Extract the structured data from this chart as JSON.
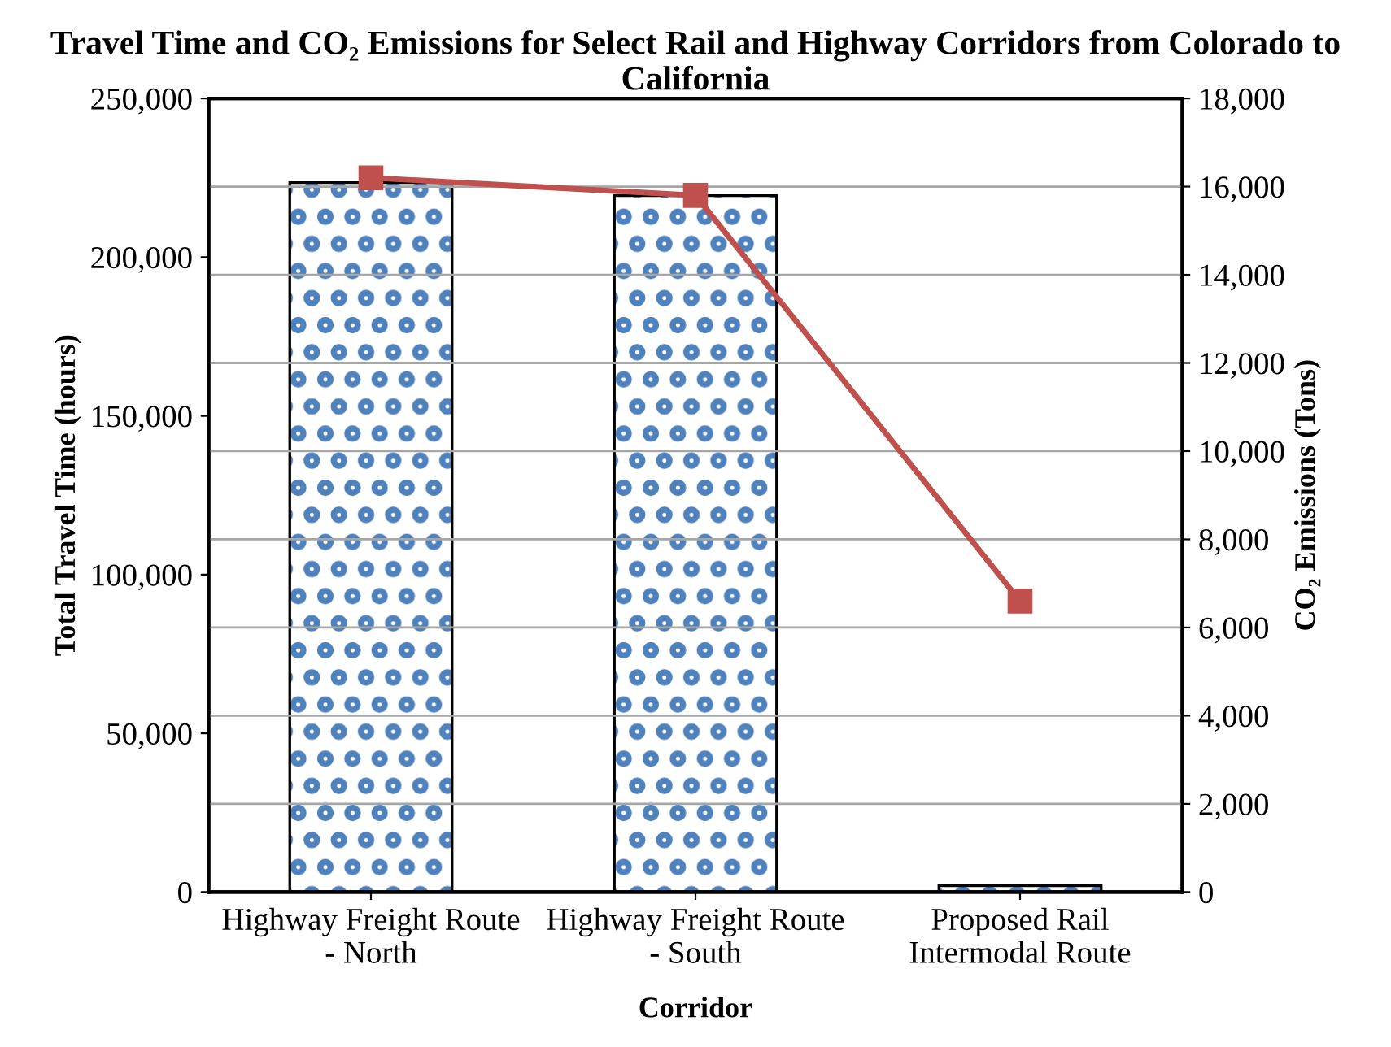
{
  "chart_data": {
    "type": "bar",
    "title": "Travel Time and CO₂ Emissions for Select Rail and Highway Corridors from Colorado to California",
    "xlabel": "Corridor",
    "ylabel": "Total Travel Time (hours)",
    "y2label": "CO₂ Emissions (Tons)",
    "categories": [
      "Highway Freight Route - North",
      "Highway Freight Route - South",
      "Proposed Rail Intermodal Route"
    ],
    "series": [
      {
        "color": "#4f81bd",
        "values": [
          223500,
          219400,
          2000
        ]
      },
      {
        "type": "line",
        "axis": "y2",
        "color": "#c0504d",
        "values": [
          16200,
          15800,
          6600
        ],
        "marker": "square"
      }
    ],
    "ylim": [
      0,
      250000
    ],
    "yticks": [
      {
        "value": 0,
        "label": "0"
      },
      {
        "value": 50000,
        "label": "50,000"
      },
      {
        "value": 100000,
        "label": "100,000"
      },
      {
        "value": 150000,
        "label": "150,000"
      },
      {
        "value": 200000,
        "label": "200,000"
      },
      {
        "value": 250000,
        "label": "250,000"
      }
    ],
    "y2lim": [
      0,
      18000
    ],
    "y2ticks": [
      {
        "value": 0,
        "label": "0"
      },
      {
        "value": 2000,
        "label": "2,000"
      },
      {
        "value": 4000,
        "label": "4,000"
      },
      {
        "value": 6000,
        "label": "6,000"
      },
      {
        "value": 8000,
        "label": "8,000"
      },
      {
        "value": 10000,
        "label": "10,000"
      },
      {
        "value": 12000,
        "label": "12,000"
      },
      {
        "value": 14000,
        "label": "14,000"
      },
      {
        "value": 16000,
        "label": "16,000"
      },
      {
        "value": 18000,
        "label": "18,000"
      }
    ],
    "grid": "y"
  }
}
